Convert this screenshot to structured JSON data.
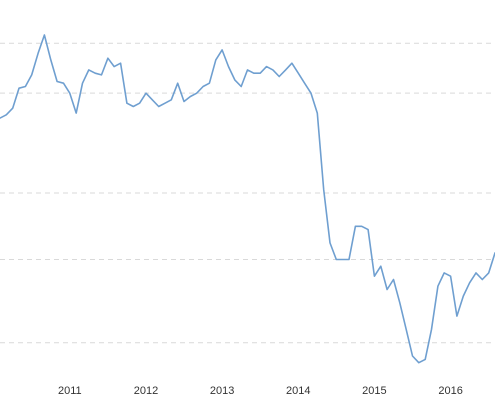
{
  "chart_data": {
    "type": "line",
    "title": "",
    "xlabel": "",
    "ylabel": "",
    "grid": true,
    "legend": "none",
    "x_ticks": [
      "2011",
      "2012",
      "2013",
      "2014",
      "2015",
      "2016"
    ],
    "xlim": [
      "2010-02",
      "2016-08"
    ],
    "ylim": [
      0,
      110
    ],
    "gridlines_y": [
      100,
      85,
      55,
      35,
      10
    ],
    "colors": {
      "line": "#6f9fd0",
      "grid": "#d9d9d9",
      "text": "#333333"
    },
    "series": [
      {
        "name": "",
        "x": [
          "2010-02",
          "2010-03",
          "2010-04",
          "2010-05",
          "2010-06",
          "2010-07",
          "2010-08",
          "2010-09",
          "2010-10",
          "2010-11",
          "2010-12",
          "2011-01",
          "2011-02",
          "2011-03",
          "2011-04",
          "2011-05",
          "2011-06",
          "2011-07",
          "2011-08",
          "2011-09",
          "2011-10",
          "2011-11",
          "2011-12",
          "2012-01",
          "2012-02",
          "2012-03",
          "2012-04",
          "2012-05",
          "2012-06",
          "2012-07",
          "2012-08",
          "2012-09",
          "2012-10",
          "2012-11",
          "2012-12",
          "2013-01",
          "2013-02",
          "2013-03",
          "2013-04",
          "2013-05",
          "2013-06",
          "2013-07",
          "2013-08",
          "2013-09",
          "2013-10",
          "2013-11",
          "2013-12",
          "2014-01",
          "2014-02",
          "2014-03",
          "2014-04",
          "2014-05",
          "2014-06",
          "2014-07",
          "2014-08",
          "2014-09",
          "2014-10",
          "2014-11",
          "2014-12",
          "2015-01",
          "2015-02",
          "2015-03",
          "2015-04",
          "2015-05",
          "2015-06",
          "2015-07",
          "2015-08",
          "2015-09",
          "2015-10",
          "2015-11",
          "2015-12",
          "2016-01",
          "2016-02",
          "2016-03",
          "2016-04",
          "2016-05",
          "2016-06",
          "2016-07",
          "2016-08"
        ],
        "values": [
          77.5,
          78.5,
          80.5,
          86.5,
          87,
          90.5,
          97,
          102.5,
          95,
          88.5,
          88,
          85,
          79,
          88,
          92,
          91,
          90.5,
          95.5,
          93,
          94,
          82,
          81,
          82,
          85,
          83,
          81,
          82,
          83,
          88,
          82.5,
          84,
          85,
          87,
          88,
          95,
          98,
          93,
          89,
          87,
          92,
          91,
          91,
          93,
          92,
          90,
          92,
          94,
          91,
          88,
          85,
          79,
          56,
          40,
          35,
          35,
          35,
          45,
          45,
          44,
          30,
          33,
          26,
          29,
          22,
          14,
          6,
          4,
          5,
          14,
          27,
          31,
          30,
          18,
          24,
          28,
          31,
          29,
          31,
          37
        ]
      }
    ]
  }
}
